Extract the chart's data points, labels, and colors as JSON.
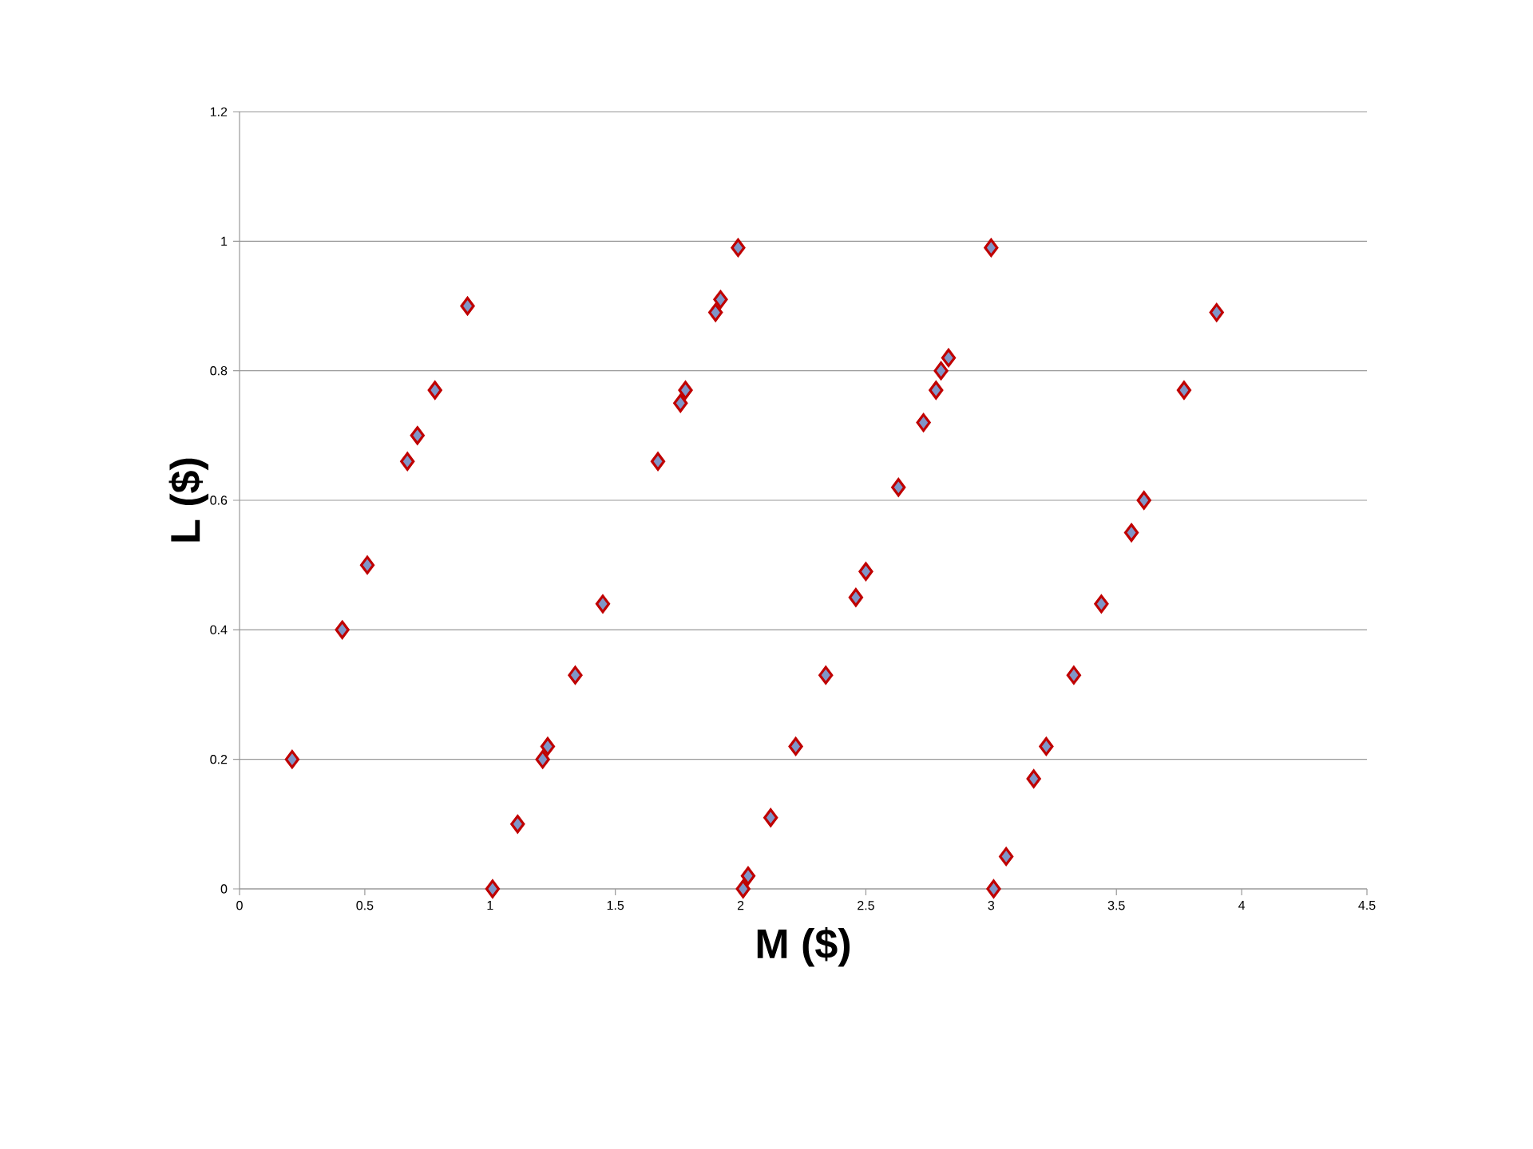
{
  "chart_data": {
    "type": "scatter",
    "xlabel": "M ($)",
    "ylabel": "L ($)",
    "x": [
      0.21,
      0.41,
      0.51,
      0.67,
      0.71,
      0.78,
      0.91,
      1.01,
      1.11,
      1.21,
      1.23,
      1.34,
      1.45,
      1.67,
      1.76,
      1.78,
      1.9,
      1.92,
      1.99,
      2.01,
      2.03,
      2.12,
      2.22,
      2.34,
      2.46,
      2.5,
      2.63,
      2.73,
      2.78,
      2.8,
      2.83,
      3.0,
      3.01,
      3.06,
      3.17,
      3.22,
      3.33,
      3.44,
      3.56,
      3.61,
      3.77,
      3.9
    ],
    "values": [
      0.2,
      0.4,
      0.5,
      0.66,
      0.7,
      0.77,
      0.9,
      0,
      0.1,
      0.2,
      0.22,
      0.33,
      0.44,
      0.66,
      0.75,
      0.77,
      0.89,
      0.91,
      0.99,
      0,
      0.02,
      0.11,
      0.22,
      0.33,
      0.45,
      0.49,
      0.62,
      0.72,
      0.77,
      0.8,
      0.82,
      0.99,
      0,
      0.05,
      0.17,
      0.22,
      0.33,
      0.44,
      0.55,
      0.6,
      0.77,
      0.89
    ],
    "color": "#7f96c8",
    "marker": "diamond",
    "grid": "y",
    "xlim": [
      0,
      4.5
    ],
    "xticks": [
      0,
      0.5,
      1,
      1.5,
      2,
      2.5,
      3,
      3.5,
      4,
      4.5
    ],
    "ylim": [
      0,
      1.2
    ],
    "yticks": [
      0,
      0.2,
      0.4,
      0.6,
      0.8,
      1,
      1.2
    ]
  }
}
